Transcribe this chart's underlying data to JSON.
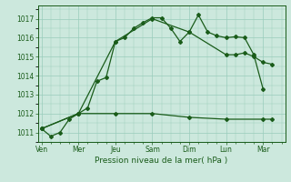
{
  "title": "Pression niveau de la mer( hPa )",
  "bg_color": "#cce8dd",
  "grid_color": "#99ccbb",
  "line_color": "#1a5c1a",
  "ylim": [
    1010.5,
    1017.7
  ],
  "yticks": [
    1011,
    1012,
    1013,
    1014,
    1015,
    1016,
    1017
  ],
  "x_labels": [
    "Ven",
    "Mer",
    "Jeu",
    "Sam",
    "Dim",
    "Lun",
    "Mar"
  ],
  "x_positions": [
    0,
    2,
    4,
    6,
    8,
    10,
    12
  ],
  "xlim": [
    -0.2,
    13.2
  ],
  "line1_x": [
    0,
    0.5,
    1.0,
    1.5,
    2.0,
    2.5,
    3.0,
    3.5,
    4.0,
    4.5,
    5.0,
    5.5,
    6.0,
    6.5,
    7.0,
    7.5,
    8.0,
    8.5,
    9.0,
    9.5,
    10.0,
    10.5,
    11.0,
    11.5,
    12.0
  ],
  "line1_y": [
    1011.2,
    1010.8,
    1011.0,
    1011.7,
    1012.0,
    1012.3,
    1013.7,
    1013.9,
    1015.8,
    1016.0,
    1016.5,
    1016.8,
    1017.05,
    1017.05,
    1016.5,
    1015.8,
    1016.3,
    1017.2,
    1016.3,
    1016.1,
    1016.0,
    1016.05,
    1016.0,
    1015.1,
    1013.3
  ],
  "line2_x": [
    0,
    2,
    4,
    6,
    8,
    10,
    10.5,
    11.0,
    11.5,
    12.0,
    12.5
  ],
  "line2_y": [
    1011.2,
    1012.0,
    1015.8,
    1017.0,
    1016.3,
    1015.1,
    1015.1,
    1015.2,
    1015.0,
    1014.7,
    1014.6
  ],
  "line3_x": [
    0,
    2,
    4,
    6,
    8,
    10,
    12,
    12.5
  ],
  "line3_y": [
    1011.2,
    1012.0,
    1012.0,
    1012.0,
    1011.8,
    1011.7,
    1011.7,
    1011.7
  ]
}
